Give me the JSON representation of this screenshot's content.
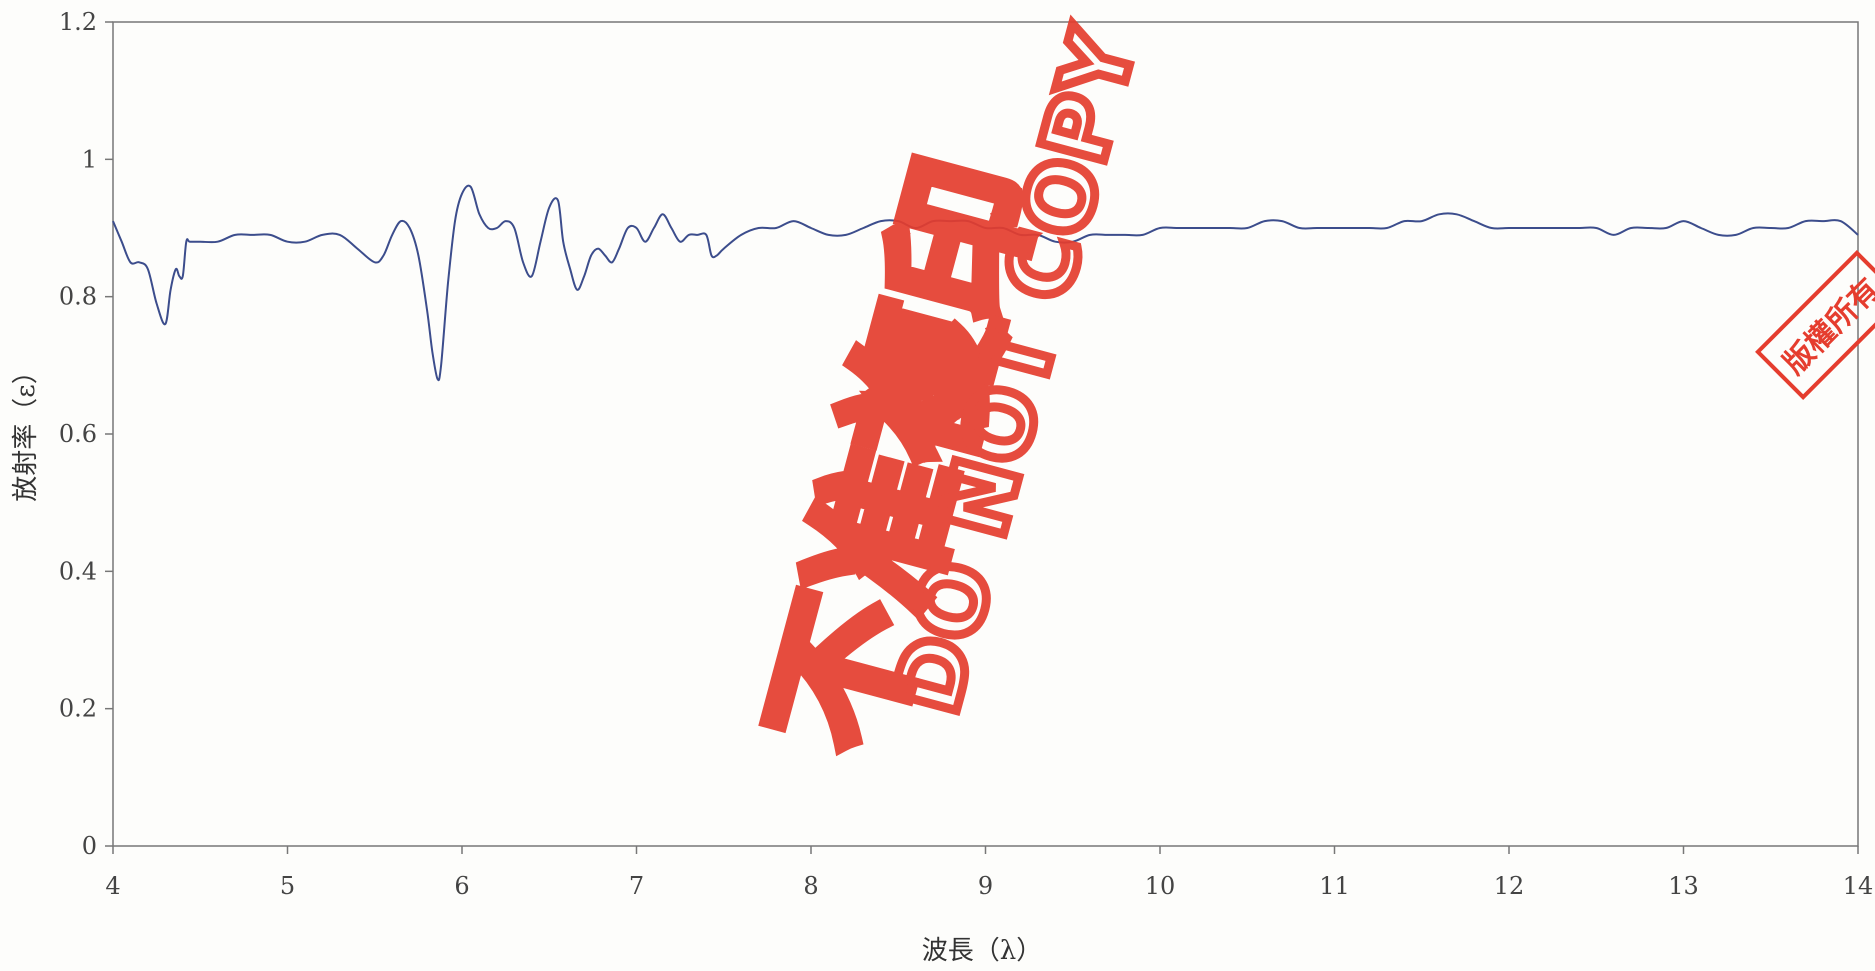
{
  "chart_data": {
    "type": "line",
    "title": "",
    "xlabel": "波長（λ）",
    "ylabel": "放射率（ε）",
    "xlim": [
      4,
      14
    ],
    "ylim": [
      0,
      1.2
    ],
    "xticks": [
      4,
      5,
      6,
      7,
      8,
      9,
      10,
      11,
      12,
      13,
      14
    ],
    "yticks": [
      0,
      0.2,
      0.4,
      0.6,
      0.8,
      1,
      1.2
    ],
    "xtick_labels": [
      "4",
      "5",
      "6",
      "7",
      "8",
      "9",
      "10",
      "11",
      "12",
      "13",
      "14"
    ],
    "ytick_labels": [
      "0",
      "0.2",
      "0.4",
      "0.6",
      "0.8",
      "1",
      "1.2"
    ],
    "grid": false,
    "series": [
      {
        "color": "#3c4d8c",
        "x": [
          4.0,
          4.05,
          4.1,
          4.15,
          4.2,
          4.25,
          4.3,
          4.33,
          4.36,
          4.38,
          4.4,
          4.42,
          4.44,
          4.5,
          4.6,
          4.7,
          4.8,
          4.9,
          5.0,
          5.1,
          5.2,
          5.3,
          5.4,
          5.5,
          5.55,
          5.6,
          5.65,
          5.7,
          5.75,
          5.8,
          5.83,
          5.86,
          5.88,
          5.92,
          5.96,
          6.0,
          6.05,
          6.1,
          6.15,
          6.2,
          6.25,
          6.3,
          6.35,
          6.4,
          6.45,
          6.5,
          6.55,
          6.58,
          6.62,
          6.66,
          6.7,
          6.74,
          6.78,
          6.82,
          6.86,
          6.9,
          6.95,
          7.0,
          7.05,
          7.1,
          7.15,
          7.2,
          7.25,
          7.3,
          7.35,
          7.4,
          7.43,
          7.46,
          7.5,
          7.6,
          7.7,
          7.8,
          7.9,
          8.0,
          8.1,
          8.2,
          8.3,
          8.4,
          8.5,
          8.6,
          8.7,
          8.8,
          8.9,
          9.0,
          9.1,
          9.2,
          9.3,
          9.4,
          9.5,
          9.6,
          9.7,
          9.8,
          9.9,
          10.0,
          10.1,
          10.2,
          10.3,
          10.4,
          10.5,
          10.6,
          10.7,
          10.8,
          10.9,
          11.0,
          11.1,
          11.2,
          11.3,
          11.4,
          11.5,
          11.6,
          11.7,
          11.8,
          11.9,
          12.0,
          12.1,
          12.2,
          12.3,
          12.4,
          12.5,
          12.6,
          12.7,
          12.8,
          12.9,
          13.0,
          13.1,
          13.2,
          13.3,
          13.4,
          13.5,
          13.6,
          13.7,
          13.8,
          13.9,
          14.0
        ],
        "values": [
          0.91,
          0.88,
          0.85,
          0.85,
          0.84,
          0.79,
          0.76,
          0.81,
          0.84,
          0.83,
          0.83,
          0.88,
          0.88,
          0.88,
          0.88,
          0.89,
          0.89,
          0.89,
          0.88,
          0.88,
          0.89,
          0.89,
          0.87,
          0.85,
          0.86,
          0.89,
          0.91,
          0.9,
          0.86,
          0.78,
          0.72,
          0.68,
          0.7,
          0.82,
          0.91,
          0.95,
          0.96,
          0.92,
          0.9,
          0.9,
          0.91,
          0.9,
          0.85,
          0.83,
          0.88,
          0.93,
          0.94,
          0.88,
          0.84,
          0.81,
          0.83,
          0.86,
          0.87,
          0.86,
          0.85,
          0.87,
          0.9,
          0.9,
          0.88,
          0.9,
          0.92,
          0.9,
          0.88,
          0.89,
          0.89,
          0.89,
          0.86,
          0.86,
          0.87,
          0.89,
          0.9,
          0.9,
          0.91,
          0.9,
          0.89,
          0.89,
          0.9,
          0.91,
          0.91,
          0.9,
          0.91,
          0.91,
          0.91,
          0.9,
          0.9,
          0.89,
          0.89,
          0.88,
          0.88,
          0.89,
          0.89,
          0.89,
          0.89,
          0.9,
          0.9,
          0.9,
          0.9,
          0.9,
          0.9,
          0.91,
          0.91,
          0.9,
          0.9,
          0.9,
          0.9,
          0.9,
          0.9,
          0.91,
          0.91,
          0.92,
          0.92,
          0.91,
          0.9,
          0.9,
          0.9,
          0.9,
          0.9,
          0.9,
          0.9,
          0.89,
          0.9,
          0.9,
          0.9,
          0.91,
          0.9,
          0.89,
          0.89,
          0.9,
          0.9,
          0.9,
          0.91,
          0.91,
          0.91,
          0.89
        ]
      }
    ]
  },
  "watermark": {
    "chinese": "不准複印",
    "english": "DO NOT COPY",
    "stamp_text": "版權所有",
    "color": "#e53d2e"
  },
  "colors": {
    "line": "#3c4d8c",
    "axis": "#777777"
  }
}
